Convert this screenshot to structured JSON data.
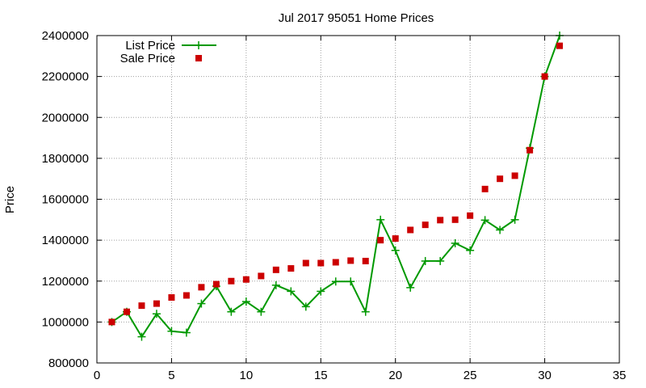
{
  "chart_data": {
    "type": "line",
    "title": "Jul 2017 95051 Home Prices",
    "xlabel": "",
    "ylabel": "Price",
    "xlim": [
      0,
      35
    ],
    "ylim": [
      800000,
      2400000
    ],
    "xticks": [
      0,
      5,
      10,
      15,
      20,
      25,
      30,
      35
    ],
    "yticks": [
      800000,
      1000000,
      1200000,
      1400000,
      1600000,
      1800000,
      2000000,
      2200000,
      2400000
    ],
    "xtick_labels": [
      "0",
      "5",
      "10",
      "15",
      "20",
      "25",
      "30",
      "35"
    ],
    "ytick_labels": [
      "800000",
      "1000000",
      "1200000",
      "1400000",
      "1600000",
      "1800000",
      "2000000",
      "2200000",
      "2400000"
    ],
    "grid": true,
    "legend_position": "top-left",
    "series": [
      {
        "name": "List Price",
        "style": "line+plus",
        "color": "#009900",
        "x": [
          1,
          2,
          3,
          4,
          5,
          6,
          7,
          8,
          9,
          10,
          11,
          12,
          13,
          14,
          15,
          16,
          17,
          18,
          19,
          20,
          21,
          22,
          23,
          24,
          25,
          26,
          27,
          28,
          29,
          30,
          31
        ],
        "y": [
          1000000,
          1050000,
          928000,
          1040000,
          955000,
          948000,
          1090000,
          1175000,
          1050000,
          1100000,
          1050000,
          1180000,
          1150000,
          1075000,
          1150000,
          1198000,
          1198000,
          1050000,
          1500000,
          1350000,
          1168000,
          1298000,
          1298000,
          1385000,
          1350000,
          1498000,
          1450000,
          1500000,
          1850000,
          2200000,
          2400000
        ]
      },
      {
        "name": "Sale Price",
        "style": "square",
        "color": "#cc0000",
        "x": [
          1,
          2,
          3,
          4,
          5,
          6,
          7,
          8,
          9,
          10,
          11,
          12,
          13,
          14,
          15,
          16,
          17,
          18,
          19,
          20,
          21,
          22,
          23,
          24,
          25,
          26,
          27,
          28,
          29,
          30,
          31
        ],
        "y": [
          1000000,
          1050000,
          1080000,
          1090000,
          1120000,
          1130000,
          1170000,
          1185000,
          1200000,
          1208000,
          1225000,
          1255000,
          1262000,
          1288000,
          1288000,
          1292000,
          1300000,
          1298000,
          1400000,
          1408000,
          1450000,
          1475000,
          1498000,
          1500000,
          1520000,
          1650000,
          1700000,
          1715000,
          1840000,
          2200000,
          2350000
        ]
      }
    ]
  }
}
